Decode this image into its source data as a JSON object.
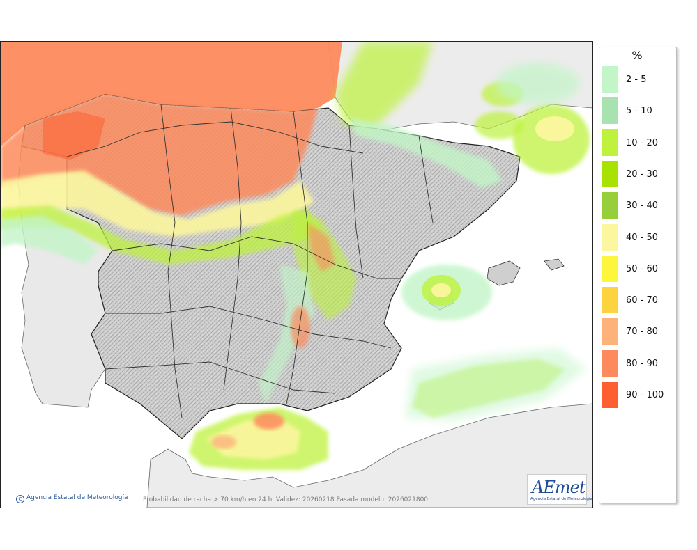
{
  "map": {
    "copyright": "Agencia Estatal de Meteorología",
    "caption": "Probabilidad de racha > 70 km/h en 24 h. Validez: 20260218 Pasada modelo: 2026021800",
    "logo_text": "AEmet",
    "logo_subtext": "Agencia Estatal de Meteorología"
  },
  "legend": {
    "title": "%",
    "items": [
      {
        "label": "2 - 5",
        "color": "#c2f5c7"
      },
      {
        "label": "5 - 10",
        "color": "#a8e2b1"
      },
      {
        "label": "10 - 20",
        "color": "#bef23c"
      },
      {
        "label": "20 - 30",
        "color": "#a7e200"
      },
      {
        "label": "30 - 40",
        "color": "#96cf3a"
      },
      {
        "label": "40 - 50",
        "color": "#fcf69e"
      },
      {
        "label": "50 - 60",
        "color": "#fcf63c"
      },
      {
        "label": "60 - 70",
        "color": "#fdd440"
      },
      {
        "label": "70 - 80",
        "color": "#fdb27c"
      },
      {
        "label": "80 - 90",
        "color": "#fd8a5c"
      },
      {
        "label": "90 - 100",
        "color": "#fd5f32"
      }
    ]
  }
}
